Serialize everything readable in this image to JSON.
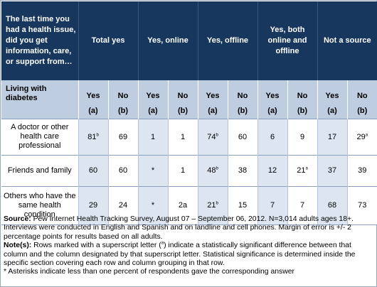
{
  "header": {
    "question": "The last time you had a health issue, did you get information, care, or support from…",
    "groups": [
      "Total yes",
      "Yes, online",
      "Yes, offline",
      "Yes, both online and offline",
      "Not a source"
    ]
  },
  "subheader": {
    "row_label": "Living with diabetes",
    "yes_label": "Yes",
    "no_label": "No",
    "col_a": "(a)",
    "col_b": "(b)"
  },
  "rows": [
    {
      "label": "A doctor or other health care professional",
      "cells": [
        {
          "v": "81",
          "sup": "b"
        },
        {
          "v": "69",
          "sup": ""
        },
        {
          "v": "1",
          "sup": ""
        },
        {
          "v": "1",
          "sup": ""
        },
        {
          "v": "74",
          "sup": "b"
        },
        {
          "v": "60",
          "sup": ""
        },
        {
          "v": "6",
          "sup": ""
        },
        {
          "v": "9",
          "sup": ""
        },
        {
          "v": "17",
          "sup": ""
        },
        {
          "v": "29",
          "sup": "a"
        }
      ]
    },
    {
      "label": "Friends and family",
      "cells": [
        {
          "v": "60",
          "sup": ""
        },
        {
          "v": "60",
          "sup": ""
        },
        {
          "v": "*",
          "sup": ""
        },
        {
          "v": "1",
          "sup": ""
        },
        {
          "v": "48",
          "sup": "b"
        },
        {
          "v": "38",
          "sup": ""
        },
        {
          "v": "12",
          "sup": ""
        },
        {
          "v": "21",
          "sup": "a"
        },
        {
          "v": "37",
          "sup": ""
        },
        {
          "v": "39",
          "sup": ""
        }
      ]
    },
    {
      "label": "Others who have the same health condition",
      "cells": [
        {
          "v": "29",
          "sup": ""
        },
        {
          "v": "24",
          "sup": ""
        },
        {
          "v": "*",
          "sup": ""
        },
        {
          "v": "2a",
          "sup": ""
        },
        {
          "v": "21",
          "sup": "b"
        },
        {
          "v": "15",
          "sup": ""
        },
        {
          "v": "7",
          "sup": ""
        },
        {
          "v": "7",
          "sup": ""
        },
        {
          "v": "68",
          "sup": ""
        },
        {
          "v": "73",
          "sup": ""
        }
      ]
    }
  ],
  "notes": {
    "source_prefix": "Source:",
    "source_text": " Pew Internet Health Tracking Survey, August 07 – September 06, 2012. N=3,014 adults ages 18+. Interviews were conducted in English and Spanish and on landline and cell phones.  Margin of error is +/- 2 percentage points for results based on all adults.",
    "note_prefix": "Note(s):",
    "note_text_1": " Rows marked with a superscript letter (",
    "note_sup": "a",
    "note_text_2": ") indicate a statistically significant difference between that column and the column designated by that superscript letter. Statistical significance is determined inside the specific section covering each row and column grouping in that row.",
    "asterisk_note": "* Asterisks indicate less than one percent of respondents gave the corresponding answer"
  }
}
